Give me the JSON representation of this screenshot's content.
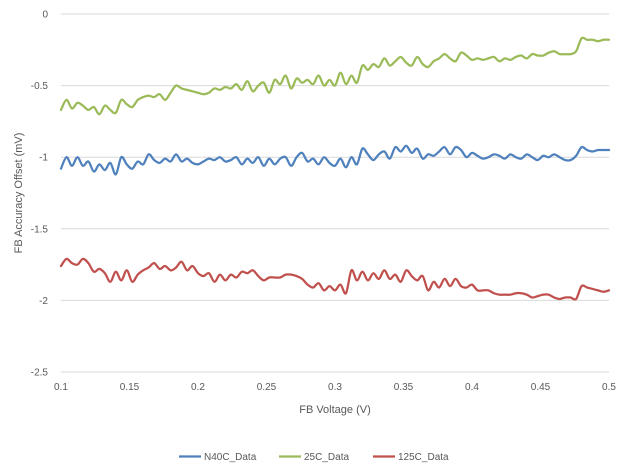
{
  "chart_data": {
    "type": "line",
    "title": "",
    "xlabel": "FB Voltage (V)",
    "ylabel": "FB Accuracy Offset (mV)",
    "xlim": [
      0.1,
      0.5
    ],
    "ylim": [
      -2.5,
      0
    ],
    "x_ticks": [
      "0.1",
      "0.15",
      "0.2",
      "0.25",
      "0.3",
      "0.35",
      "0.4",
      "0.45",
      "0.5"
    ],
    "y_ticks": [
      "0",
      "-0.5",
      "-1",
      "-1.5",
      "-2",
      "-2.5"
    ],
    "grid": "horizontal",
    "legend_position": "bottom",
    "colors": {
      "N40C_Data": "#4f81bd",
      "25C_Data": "#9bbb59",
      "125C_Data": "#c0504d",
      "grid": "#d9d9d9",
      "text": "#595959"
    },
    "x": [
      0.1,
      0.104,
      0.108,
      0.112,
      0.116,
      0.12,
      0.124,
      0.128,
      0.132,
      0.136,
      0.14,
      0.144,
      0.148,
      0.152,
      0.156,
      0.16,
      0.164,
      0.168,
      0.172,
      0.176,
      0.18,
      0.184,
      0.188,
      0.192,
      0.196,
      0.2,
      0.204,
      0.208,
      0.212,
      0.216,
      0.22,
      0.224,
      0.228,
      0.232,
      0.236,
      0.24,
      0.244,
      0.248,
      0.252,
      0.256,
      0.26,
      0.264,
      0.268,
      0.272,
      0.276,
      0.28,
      0.284,
      0.288,
      0.292,
      0.296,
      0.3,
      0.304,
      0.308,
      0.312,
      0.316,
      0.32,
      0.324,
      0.328,
      0.332,
      0.336,
      0.34,
      0.344,
      0.348,
      0.352,
      0.356,
      0.36,
      0.364,
      0.368,
      0.372,
      0.376,
      0.38,
      0.384,
      0.388,
      0.392,
      0.396,
      0.4,
      0.404,
      0.408,
      0.412,
      0.416,
      0.42,
      0.424,
      0.428,
      0.432,
      0.436,
      0.44,
      0.444,
      0.448,
      0.452,
      0.456,
      0.46,
      0.464,
      0.468,
      0.472,
      0.476,
      0.48,
      0.484,
      0.488,
      0.492,
      0.496,
      0.5
    ],
    "series": [
      {
        "name": "N40C_Data",
        "values": [
          -1.08,
          -1.0,
          -1.06,
          -1.0,
          -1.06,
          -1.03,
          -1.1,
          -1.05,
          -1.09,
          -1.04,
          -1.12,
          -1.0,
          -1.05,
          -1.08,
          -1.03,
          -1.05,
          -0.98,
          -1.02,
          -1.04,
          -1.01,
          -1.03,
          -0.98,
          -1.03,
          -1.01,
          -1.04,
          -1.05,
          -1.03,
          -1.01,
          -1.02,
          -1.0,
          -1.03,
          -1.02,
          -1.0,
          -1.05,
          -1.01,
          -1.04,
          -1.0,
          -1.06,
          -1.01,
          -1.05,
          -1.01,
          -1.0,
          -1.06,
          -1.0,
          -0.97,
          -1.03,
          -1.01,
          -1.05,
          -1.0,
          -1.04,
          -1.06,
          -1.01,
          -1.07,
          -1.0,
          -1.05,
          -0.94,
          -0.98,
          -1.02,
          -0.98,
          -0.96,
          -1.01,
          -0.93,
          -0.96,
          -0.92,
          -0.97,
          -0.94,
          -1.01,
          -0.98,
          -0.99,
          -0.96,
          -0.93,
          -0.98,
          -0.93,
          -0.95,
          -1.0,
          -0.97,
          -0.99,
          -1.01,
          -1.0,
          -0.98,
          -0.99,
          -1.01,
          -0.98,
          -1.0,
          -1.01,
          -0.98,
          -1.0,
          -1.02,
          -0.99,
          -1.0,
          -0.98,
          -1.0,
          -1.02,
          -1.02,
          -0.99,
          -0.93,
          -0.95,
          -0.96,
          -0.95,
          -0.95,
          -0.95
        ]
      },
      {
        "name": "25C_Data",
        "values": [
          -0.67,
          -0.6,
          -0.66,
          -0.62,
          -0.64,
          -0.67,
          -0.65,
          -0.7,
          -0.64,
          -0.67,
          -0.69,
          -0.6,
          -0.63,
          -0.65,
          -0.6,
          -0.58,
          -0.57,
          -0.58,
          -0.56,
          -0.6,
          -0.55,
          -0.5,
          -0.52,
          -0.53,
          -0.54,
          -0.55,
          -0.56,
          -0.55,
          -0.52,
          -0.53,
          -0.51,
          -0.52,
          -0.49,
          -0.53,
          -0.47,
          -0.54,
          -0.5,
          -0.48,
          -0.55,
          -0.46,
          -0.49,
          -0.43,
          -0.52,
          -0.45,
          -0.48,
          -0.46,
          -0.49,
          -0.43,
          -0.5,
          -0.46,
          -0.5,
          -0.41,
          -0.49,
          -0.43,
          -0.48,
          -0.36,
          -0.39,
          -0.35,
          -0.37,
          -0.31,
          -0.36,
          -0.33,
          -0.3,
          -0.34,
          -0.36,
          -0.3,
          -0.35,
          -0.37,
          -0.33,
          -0.31,
          -0.28,
          -0.31,
          -0.33,
          -0.27,
          -0.29,
          -0.32,
          -0.31,
          -0.32,
          -0.31,
          -0.3,
          -0.33,
          -0.31,
          -0.32,
          -0.3,
          -0.29,
          -0.31,
          -0.28,
          -0.29,
          -0.29,
          -0.27,
          -0.26,
          -0.28,
          -0.28,
          -0.28,
          -0.26,
          -0.17,
          -0.18,
          -0.18,
          -0.19,
          -0.18,
          -0.18
        ]
      },
      {
        "name": "125C_Data",
        "values": [
          -1.76,
          -1.71,
          -1.74,
          -1.75,
          -1.71,
          -1.74,
          -1.8,
          -1.78,
          -1.81,
          -1.87,
          -1.8,
          -1.86,
          -1.79,
          -1.87,
          -1.82,
          -1.79,
          -1.77,
          -1.74,
          -1.78,
          -1.76,
          -1.79,
          -1.77,
          -1.73,
          -1.79,
          -1.76,
          -1.81,
          -1.83,
          -1.81,
          -1.87,
          -1.82,
          -1.86,
          -1.82,
          -1.84,
          -1.8,
          -1.81,
          -1.79,
          -1.83,
          -1.86,
          -1.84,
          -1.84,
          -1.84,
          -1.82,
          -1.82,
          -1.83,
          -1.85,
          -1.89,
          -1.91,
          -1.88,
          -1.93,
          -1.9,
          -1.93,
          -1.89,
          -1.95,
          -1.79,
          -1.86,
          -1.8,
          -1.86,
          -1.81,
          -1.85,
          -1.79,
          -1.85,
          -1.82,
          -1.87,
          -1.79,
          -1.83,
          -1.86,
          -1.83,
          -1.93,
          -1.87,
          -1.91,
          -1.85,
          -1.9,
          -1.85,
          -1.9,
          -1.91,
          -1.89,
          -1.93,
          -1.93,
          -1.93,
          -1.95,
          -1.96,
          -1.96,
          -1.96,
          -1.95,
          -1.95,
          -1.96,
          -1.98,
          -1.97,
          -1.96,
          -1.96,
          -1.98,
          -1.99,
          -1.98,
          -1.98,
          -1.99,
          -1.9,
          -1.91,
          -1.92,
          -1.93,
          -1.94,
          -1.93
        ]
      }
    ]
  }
}
